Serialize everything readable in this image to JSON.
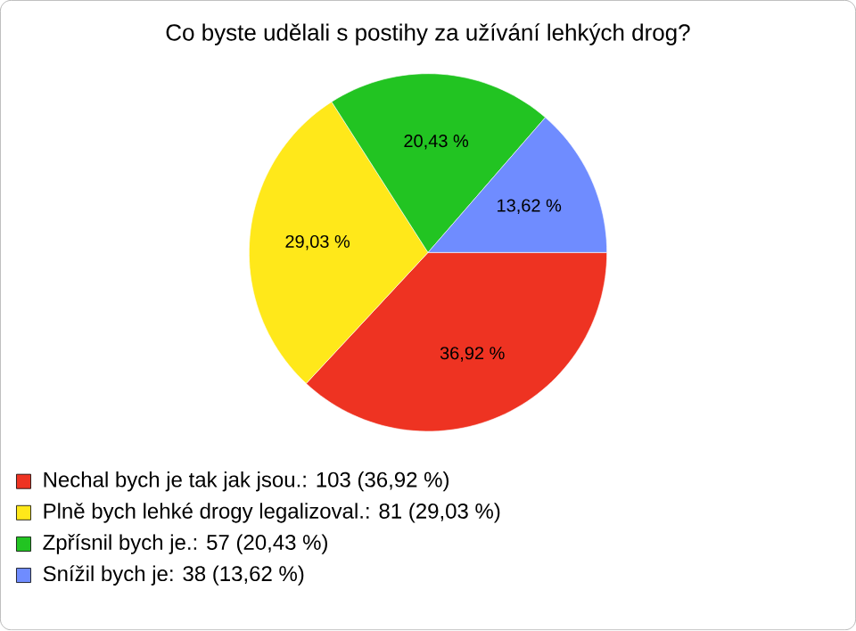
{
  "chart_data": {
    "type": "pie",
    "title": "Co byste udělali s postihy za užívání lehkých drog?",
    "categories": [
      "Nechal bych je tak jak jsou.: 103 (36,92 %)",
      "Plně bych lehké drogy legalizoval.: 81 (29,03 %)",
      "Zpřísnil bych je.: 57 (20,43 %)",
      "Snížil bych je: 38 (13,62 %)"
    ],
    "values": [
      36.92,
      29.03,
      20.43,
      13.62
    ],
    "value_labels": [
      "36,92 %",
      "29,03 %",
      "20,43 %",
      "13,62 %"
    ],
    "colors": [
      "#ee3322",
      "#ffe81a",
      "#22c422",
      "#6f8cff"
    ],
    "legend": "bottom left"
  }
}
